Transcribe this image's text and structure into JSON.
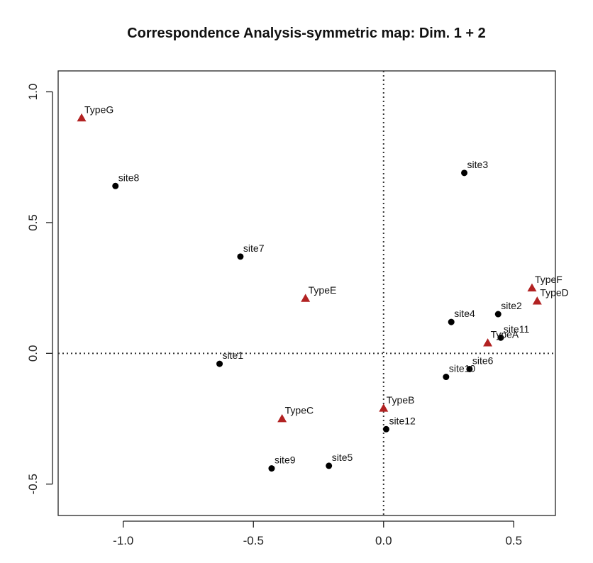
{
  "chart_data": {
    "type": "scatter",
    "title": "Correspondence Analysis-symmetric map: Dim. 1 + 2",
    "xlabel": "",
    "ylabel": "",
    "xlim": [
      -1.25,
      0.66
    ],
    "ylim": [
      -0.62,
      1.08
    ],
    "x_ticks": [
      -1.0,
      -0.5,
      0.0,
      0.5
    ],
    "x_tick_labels": [
      "-1.0",
      "-0.5",
      "0.0",
      "0.5"
    ],
    "y_ticks": [
      -0.5,
      0.0,
      0.5,
      1.0
    ],
    "y_tick_labels": [
      "-0.5",
      "0.0",
      "0.5",
      "1.0"
    ],
    "reference_lines": {
      "x": 0,
      "y": 0,
      "style": "dotted"
    },
    "grid": false,
    "series": [
      {
        "marker": "circle",
        "color": "#000000",
        "points": [
          {
            "label": "site1",
            "x": -0.63,
            "y": -0.04
          },
          {
            "label": "site2",
            "x": 0.44,
            "y": 0.15
          },
          {
            "label": "site3",
            "x": 0.31,
            "y": 0.69
          },
          {
            "label": "site4",
            "x": 0.26,
            "y": 0.12
          },
          {
            "label": "site5",
            "x": -0.21,
            "y": -0.43
          },
          {
            "label": "site6",
            "x": 0.33,
            "y": -0.06
          },
          {
            "label": "site7",
            "x": -0.55,
            "y": 0.37
          },
          {
            "label": "site8",
            "x": -1.03,
            "y": 0.64
          },
          {
            "label": "site9",
            "x": -0.43,
            "y": -0.44
          },
          {
            "label": "site10",
            "x": 0.24,
            "y": -0.09
          },
          {
            "label": "site11",
            "x": 0.45,
            "y": 0.06
          },
          {
            "label": "site12",
            "x": 0.01,
            "y": -0.29
          }
        ]
      },
      {
        "marker": "triangle",
        "color": "#b22222",
        "points": [
          {
            "label": "TypeA",
            "x": 0.4,
            "y": 0.04
          },
          {
            "label": "TypeB",
            "x": 0.0,
            "y": -0.21
          },
          {
            "label": "TypeC",
            "x": -0.39,
            "y": -0.25
          },
          {
            "label": "TypeD",
            "x": 0.59,
            "y": 0.2
          },
          {
            "label": "TypeE",
            "x": -0.3,
            "y": 0.21
          },
          {
            "label": "TypeF",
            "x": 0.57,
            "y": 0.25
          },
          {
            "label": "TypeG",
            "x": -1.16,
            "y": 0.9
          }
        ]
      }
    ]
  }
}
